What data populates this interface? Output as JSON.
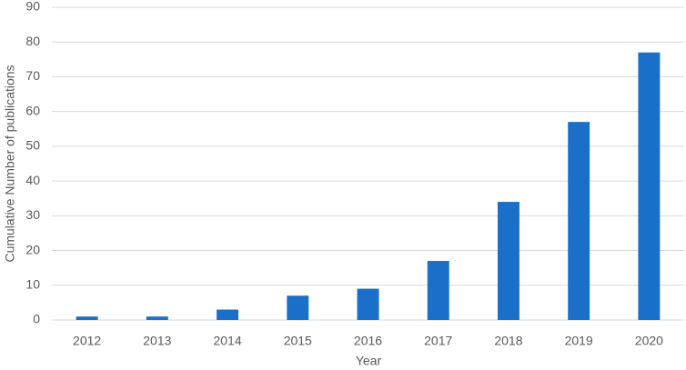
{
  "chart_data": {
    "type": "bar",
    "x_label": "Year",
    "y_label": "Cumulative Number of publications",
    "categories": [
      "2012",
      "2013",
      "2014",
      "2015",
      "2016",
      "2017",
      "2018",
      "2019",
      "2020"
    ],
    "values": [
      1,
      1,
      3,
      7,
      9,
      17,
      34,
      57,
      77
    ],
    "color": "#1a70c9",
    "ylim": [
      0,
      90
    ],
    "yticks": [
      0,
      10,
      20,
      30,
      40,
      50,
      60,
      70,
      80,
      90
    ],
    "grid": true
  }
}
